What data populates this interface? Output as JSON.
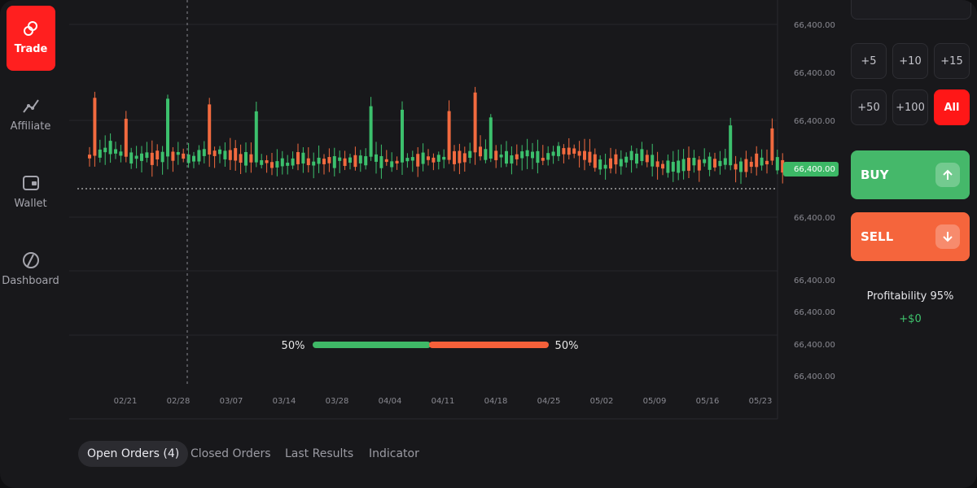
{
  "sidebar": {
    "items": [
      {
        "label": "Trade"
      },
      {
        "label": "Affiliate"
      },
      {
        "label": "Wallet"
      },
      {
        "label": "Dashboard"
      }
    ]
  },
  "chart": {
    "price_labels": [
      "66,400.00",
      "66,400.00",
      "66,400.00",
      "66,400.00",
      "66,400.00",
      "66,400.00",
      "66,400.00",
      "66,400.00"
    ],
    "current_price": "66,400.00",
    "dates": [
      "02/21",
      "02/28",
      "03/07",
      "03/14",
      "03/28",
      "04/04",
      "04/11",
      "04/18",
      "04/25",
      "05/02",
      "05/09",
      "05/16",
      "05/23"
    ],
    "sentiment": {
      "left": "50%",
      "right": "50%"
    }
  },
  "trade_panel": {
    "amounts": [
      "+5",
      "+10",
      "+15",
      "+50",
      "+100",
      "All"
    ],
    "buy": "BUY",
    "sell": "SELL",
    "profitability": "Profitability 95%",
    "profit": "+$0"
  },
  "tabs": [
    "Open Orders (4)",
    "Closed Orders",
    "Last Results",
    "Indicator"
  ]
}
